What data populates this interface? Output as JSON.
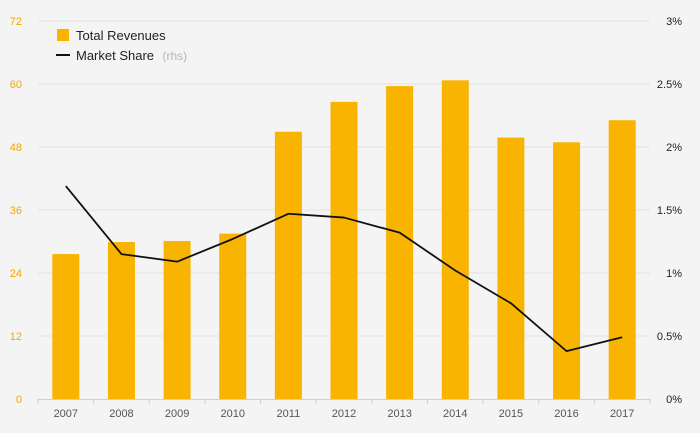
{
  "chart_data": {
    "type": "bar+line",
    "categories": [
      "2007",
      "2008",
      "2009",
      "2010",
      "2011",
      "2012",
      "2013",
      "2014",
      "2015",
      "2016",
      "2017"
    ],
    "series": [
      {
        "name": "Total Revenues",
        "type": "bar",
        "axis": "left",
        "color": "#f8b400",
        "values": [
          27.6,
          29.9,
          30.1,
          31.5,
          50.9,
          56.6,
          59.6,
          60.7,
          49.8,
          48.9,
          53.1
        ]
      },
      {
        "name": "Market Share",
        "name_note": "(rhs)",
        "type": "line",
        "axis": "right",
        "color": "#111111",
        "values": [
          1.69,
          1.15,
          1.09,
          1.27,
          1.47,
          1.44,
          1.32,
          1.02,
          0.76,
          0.38,
          0.49
        ]
      }
    ],
    "y_left": {
      "min": 0,
      "max": 72,
      "ticks": [
        "0",
        "12",
        "24",
        "36",
        "48",
        "60",
        "72"
      ],
      "tick_color": "#f0a800"
    },
    "y_right": {
      "min": 0,
      "max": 3,
      "ticks": [
        "0%",
        "0.5%",
        "1%",
        "1.5%",
        "2%",
        "2.5%",
        "3%"
      ]
    },
    "grid": true,
    "legend_position": "top-left",
    "title": "",
    "xlabel": "",
    "ylabel": ""
  }
}
